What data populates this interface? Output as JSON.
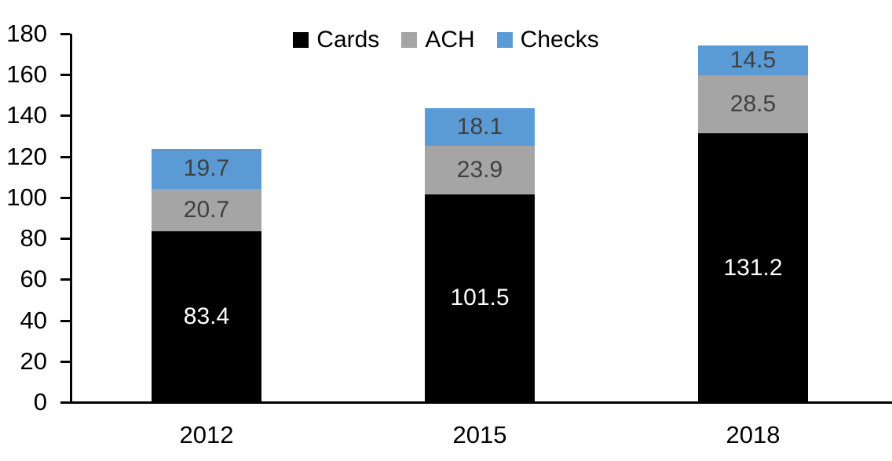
{
  "chart_data": {
    "type": "bar",
    "stacked": true,
    "title": "",
    "xlabel": "",
    "ylabel": "",
    "categories": [
      "2012",
      "2015",
      "2018"
    ],
    "series": [
      {
        "name": "Cards",
        "values": [
          83.4,
          101.5,
          131.2
        ],
        "color": "#000000",
        "label_color": "#FFFFFF"
      },
      {
        "name": "ACH",
        "values": [
          20.7,
          23.9,
          28.5
        ],
        "color": "#A5A5A5",
        "label_color": "#404040"
      },
      {
        "name": "Checks",
        "values": [
          19.7,
          18.1,
          14.5
        ],
        "color": "#5B9BD5",
        "label_color": "#404040"
      }
    ],
    "ylim": [
      0,
      180
    ],
    "yticks": [
      0,
      20,
      40,
      60,
      80,
      100,
      120,
      140,
      160,
      180
    ],
    "legend_position": "top",
    "grid": false,
    "value_labels": true,
    "value_label_decimals": 1
  },
  "colors": {
    "axis": "#000000",
    "background": "#FFFFFF"
  }
}
